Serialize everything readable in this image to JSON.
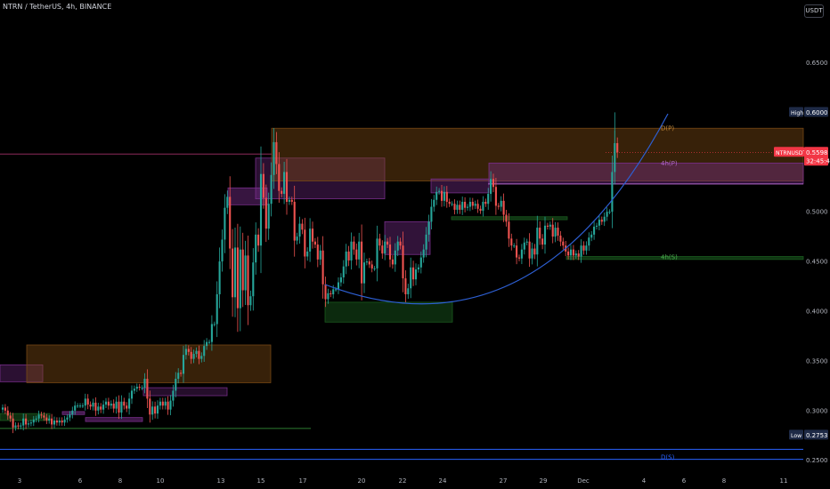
{
  "header": {
    "symbol_line": "NTRN / TetherUS, 4h, BINANCE",
    "currency_button": "USDT"
  },
  "price_axis": {
    "ticks": [
      "0.6500",
      "0.5500",
      "0.5000",
      "0.4500",
      "0.4000",
      "0.3500",
      "0.3000",
      "0.2500"
    ],
    "tick_values": [
      0.65,
      0.55,
      0.5,
      0.45,
      0.4,
      0.35,
      0.3,
      0.25
    ],
    "ylim": [
      0.239,
      0.713
    ]
  },
  "price_labels": {
    "high": {
      "label": "High",
      "value": "0.6000",
      "price": 0.6,
      "color": "#1e2a46"
    },
    "current": {
      "label": "NTRNUSDT",
      "value": "0.5598",
      "timer": "32:45:40",
      "price": 0.5598,
      "color": "#f23645"
    },
    "low": {
      "label": "Low",
      "value": "0.2753",
      "price": 0.2753,
      "color": "#1e2a46"
    }
  },
  "time_axis": {
    "labels": [
      "3",
      "6",
      "8",
      "10",
      "13",
      "15",
      "17",
      "20",
      "22",
      "24",
      "27",
      "29",
      "Dec",
      "4",
      "6",
      "8",
      "11"
    ],
    "label_index": [
      0,
      2,
      3,
      4,
      6,
      7,
      8,
      10,
      11,
      12,
      14,
      15,
      16.43,
      17.86,
      18.82,
      19.79,
      21.24
    ]
  },
  "annotations": [
    {
      "text": "D(P)",
      "price": 0.584,
      "color": "#c58a3a"
    },
    {
      "text": "4h(P)",
      "price": 0.549,
      "color": "#b067c8"
    },
    {
      "text": "4h(S)",
      "price": 0.4545,
      "color": "#4caf50"
    },
    {
      "text": "D(S)",
      "price": 0.2535,
      "color": "#2962ff"
    }
  ],
  "colors": {
    "bull": "#26a69a",
    "bear": "#ef5350",
    "curve": "#2d5fd3",
    "background": "#000000"
  },
  "chart_data": {
    "type": "candlestick",
    "title": "NTRN / TetherUS, 4h, BINANCE",
    "interval": "4h",
    "open_index": 14,
    "candles": {
      "close": [
        0.303,
        0.3,
        0.295,
        0.292,
        0.283,
        0.285,
        0.284,
        0.285,
        0.292,
        0.286,
        0.287,
        0.288,
        0.291,
        0.292,
        0.296,
        0.295,
        0.293,
        0.29,
        0.292,
        0.286,
        0.29,
        0.288,
        0.29,
        0.288,
        0.291,
        0.293,
        0.296,
        0.3,
        0.305,
        0.305,
        0.305,
        0.305,
        0.312,
        0.306,
        0.304,
        0.308,
        0.3,
        0.304,
        0.301,
        0.306,
        0.309,
        0.305,
        0.307,
        0.302,
        0.309,
        0.298,
        0.309,
        0.305,
        0.302,
        0.312,
        0.32,
        0.322,
        0.324,
        0.323,
        0.323,
        0.332,
        0.312,
        0.296,
        0.304,
        0.297,
        0.305,
        0.309,
        0.305,
        0.309,
        0.301,
        0.31,
        0.32,
        0.332,
        0.338,
        0.337,
        0.356,
        0.362,
        0.359,
        0.352,
        0.357,
        0.36,
        0.352,
        0.355,
        0.365,
        0.369,
        0.369,
        0.387,
        0.387,
        0.417,
        0.45,
        0.472,
        0.504,
        0.515,
        0.463,
        0.414,
        0.464,
        0.403,
        0.462,
        0.421,
        0.456,
        0.406,
        0.415,
        0.449,
        0.477,
        0.466,
        0.538,
        0.514,
        0.483,
        0.508,
        0.537,
        0.57,
        0.548,
        0.521,
        0.518,
        0.54,
        0.51,
        0.512,
        0.51,
        0.471,
        0.475,
        0.488,
        0.482,
        0.455,
        0.46,
        0.483,
        0.47,
        0.467,
        0.452,
        0.461,
        0.427,
        0.412,
        0.418,
        0.417,
        0.422,
        0.422,
        0.429,
        0.434,
        0.445,
        0.46,
        0.451,
        0.47,
        0.462,
        0.452,
        0.47,
        0.428,
        0.449,
        0.45,
        0.447,
        0.443,
        0.443,
        0.473,
        0.466,
        0.458,
        0.47,
        0.467,
        0.452,
        0.447,
        0.461,
        0.47,
        0.466,
        0.433,
        0.417,
        0.423,
        0.444,
        0.432,
        0.442,
        0.444,
        0.454,
        0.462,
        0.477,
        0.49,
        0.505,
        0.512,
        0.52,
        0.521,
        0.511,
        0.52,
        0.51,
        0.508,
        0.508,
        0.502,
        0.507,
        0.502,
        0.51,
        0.504,
        0.505,
        0.51,
        0.506,
        0.508,
        0.503,
        0.501,
        0.51,
        0.508,
        0.518,
        0.533,
        0.525,
        0.506,
        0.505,
        0.511,
        0.497,
        0.49,
        0.473,
        0.466,
        0.466,
        0.454,
        0.453,
        0.462,
        0.469,
        0.47,
        0.453,
        0.463,
        0.457,
        0.484,
        0.473,
        0.467,
        0.486,
        0.485,
        0.487,
        0.475,
        0.484,
        0.476,
        0.47,
        0.466,
        0.46,
        0.456,
        0.462,
        0.456,
        0.458,
        0.455,
        0.466,
        0.461,
        0.466,
        0.474,
        0.477,
        0.485,
        0.486,
        0.492,
        0.49,
        0.495,
        0.5,
        0.5,
        0.54,
        0.569,
        0.5598
      ],
      "start_open": 0.301,
      "start_index": 0.0
    }
  }
}
